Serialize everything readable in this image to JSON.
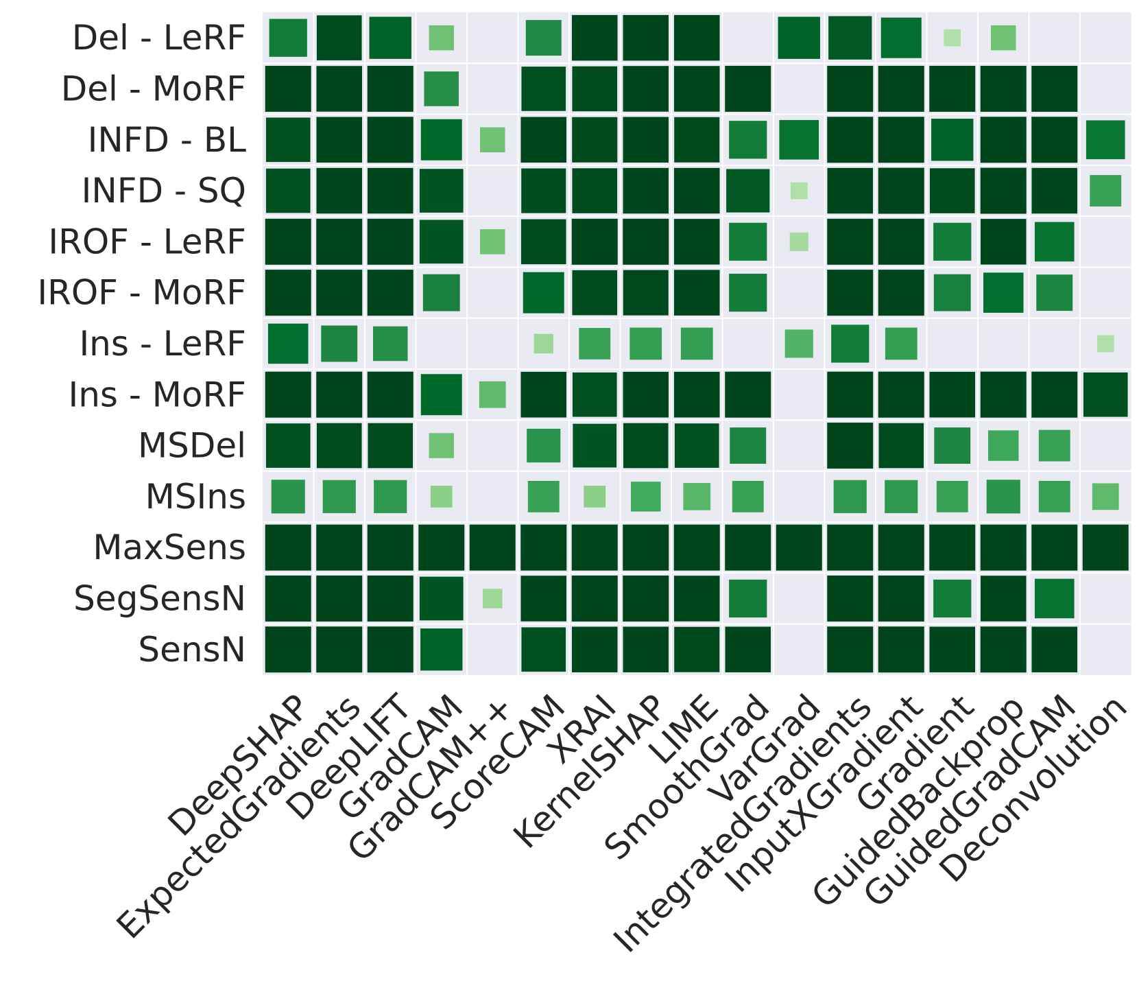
{
  "chart_data": {
    "type": "heatmap",
    "title": "",
    "xlabel": "",
    "ylabel": "",
    "grid": true,
    "colormap": "Greens",
    "value_range": [
      0,
      1
    ],
    "encoding": "square color intensity and square size both scale with value; blank cells have no square",
    "colors": {
      "background": "#eaeaf2",
      "gridline": "#ffffff",
      "label": "#262626"
    },
    "x_categories": [
      "DeepSHAP",
      "ExpectedGradients",
      "DeepLIFT",
      "GradCAM",
      "GradCAM++",
      "ScoreCAM",
      "XRAI",
      "KernelSHAP",
      "LIME",
      "SmoothGrad",
      "VarGrad",
      "IntegratedGradients",
      "InputXGradient",
      "Gradient",
      "GuidedBackprop",
      "GuidedGradCAM",
      "Deconvolution"
    ],
    "y_categories": [
      "Del - LeRF",
      "Del - MoRF",
      "INFD - BL",
      "INFD - SQ",
      "IROF - LeRF",
      "IROF - MoRF",
      "Ins - LeRF",
      "Ins - MoRF",
      "MSDel",
      "MSIns",
      "MaxSens",
      "SegSensN",
      "SensN"
    ],
    "values": [
      [
        0.75,
        0.97,
        0.88,
        0.35,
        null,
        0.68,
        0.99,
        0.99,
        0.99,
        null,
        0.88,
        0.92,
        0.83,
        0.1,
        0.35,
        null,
        null
      ],
      [
        1.0,
        0.99,
        1.0,
        0.65,
        null,
        0.95,
        0.97,
        0.99,
        0.99,
        1.0,
        null,
        1.0,
        1.0,
        1.0,
        1.0,
        1.0,
        null
      ],
      [
        0.95,
        0.99,
        1.0,
        0.85,
        0.35,
        0.99,
        0.98,
        0.99,
        0.98,
        0.75,
        0.8,
        1.0,
        1.0,
        0.88,
        1.0,
        1.0,
        0.78
      ],
      [
        0.95,
        0.99,
        0.99,
        0.93,
        null,
        0.96,
        0.97,
        0.99,
        0.99,
        0.92,
        0.1,
        0.99,
        1.0,
        0.97,
        1.0,
        0.99,
        0.55
      ],
      [
        1.0,
        1.0,
        1.0,
        0.93,
        0.35,
        0.97,
        1.0,
        1.0,
        0.99,
        0.75,
        0.15,
        1.0,
        1.0,
        0.75,
        0.99,
        0.8,
        null
      ],
      [
        1.0,
        1.0,
        1.0,
        0.72,
        null,
        0.85,
        0.97,
        0.98,
        0.99,
        0.75,
        null,
        1.0,
        1.0,
        0.72,
        0.82,
        0.7,
        null
      ],
      [
        0.82,
        0.7,
        0.65,
        null,
        null,
        0.18,
        0.55,
        0.57,
        0.57,
        null,
        0.45,
        0.75,
        0.57,
        null,
        null,
        null,
        0.1
      ],
      [
        1.0,
        1.0,
        1.0,
        0.85,
        0.4,
        0.99,
        0.95,
        0.99,
        0.99,
        1.0,
        null,
        1.0,
        1.0,
        0.99,
        1.0,
        1.0,
        0.95
      ],
      [
        0.95,
        0.97,
        0.97,
        0.35,
        null,
        0.62,
        0.93,
        0.97,
        0.95,
        0.7,
        null,
        1.0,
        0.97,
        0.7,
        0.52,
        0.55,
        null
      ],
      [
        0.62,
        0.6,
        0.6,
        0.25,
        null,
        0.55,
        0.25,
        0.5,
        0.42,
        0.55,
        null,
        0.6,
        0.6,
        0.55,
        0.62,
        0.55,
        0.4
      ],
      [
        1.0,
        1.0,
        1.0,
        1.0,
        1.0,
        1.0,
        1.0,
        1.0,
        1.0,
        1.0,
        1.0,
        1.0,
        1.0,
        1.0,
        1.0,
        1.0,
        1.0
      ],
      [
        1.0,
        1.0,
        1.0,
        0.93,
        0.18,
        0.99,
        1.0,
        1.0,
        0.99,
        0.75,
        null,
        1.0,
        1.0,
        0.75,
        0.99,
        0.8,
        null
      ],
      [
        1.0,
        1.0,
        1.0,
        0.88,
        null,
        0.95,
        0.99,
        0.99,
        0.98,
        0.99,
        null,
        1.0,
        1.0,
        0.99,
        1.0,
        0.99,
        null
      ]
    ]
  }
}
